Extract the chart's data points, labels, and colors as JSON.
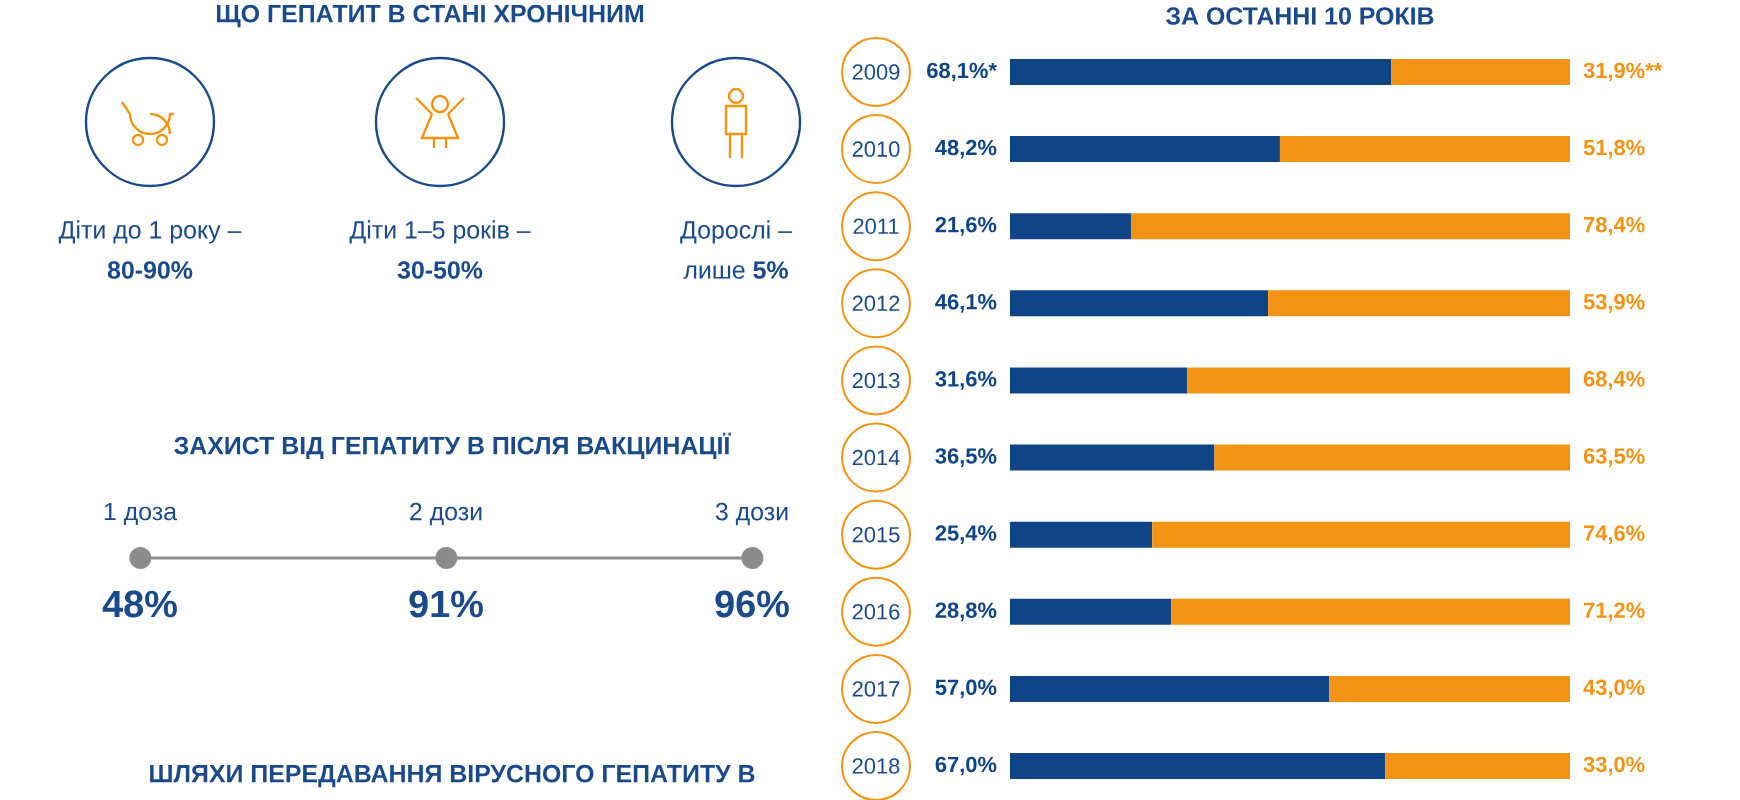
{
  "chart_data": [
    {
      "type": "other",
      "title": "ЩО ГЕПАТИТ В СТАНІ ХРОНІЧНИМ",
      "annotations": [
        "Діти до 1 року –",
        "80-90%",
        "Діти 1–5 років –",
        "30-50%",
        "Дорослі –",
        "лише **5%**"
      ]
    },
    {
      "type": "other",
      "title": "ЗАХИСТ ВІД ГЕПАТИТУ В ПІСЛЯ ВАКЦИНАЦІЇ",
      "categories": [
        "1 доза",
        "2 дози",
        "3 дози"
      ],
      "color": "#8c8c8c",
      "annotations": [
        "48%",
        "91%",
        "96%"
      ]
    },
    {
      "type": "other",
      "title": "ШЛЯХИ ПЕРЕДАВАННЯ ВІРУСНОГО ГЕПАТИТУ В"
    },
    {
      "type": "bar",
      "title": "ЗА ОСТАННІ 10 РОКІВ",
      "orientation": "horizontal",
      "stacked": true,
      "categories": [
        "2009",
        "2010",
        "2011",
        "2012",
        "2013",
        "2014",
        "2015",
        "2016",
        "2017",
        "2018"
      ],
      "series": [
        {
          "color": "#0f4487",
          "values": [
            68.1,
            48.2,
            21.6,
            46.1,
            31.6,
            36.5,
            25.4,
            28.8,
            57.0,
            67.0
          ],
          "value_labels": [
            "68,1%*",
            "48,2%",
            "21,6%",
            "46,1%",
            "31,6%",
            "36,5%",
            "25,4%",
            "28,8%",
            "57,0%",
            "67,0%"
          ]
        },
        {
          "color": "#f39313",
          "values": [
            31.9,
            51.8,
            78.4,
            53.9,
            68.4,
            63.5,
            74.6,
            71.2,
            43.0,
            33.0
          ],
          "value_labels": [
            "31,9%**",
            "51,8%",
            "78,4%",
            "53,9%",
            "68,4%",
            "63,5%",
            "74,6%",
            "71,2%",
            "43,0%",
            "33,0%"
          ]
        }
      ]
    }
  ]
}
